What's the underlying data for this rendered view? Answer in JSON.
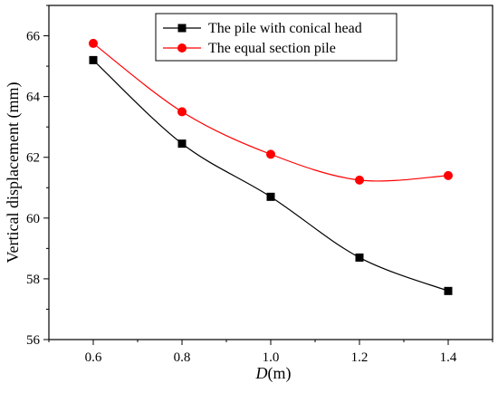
{
  "chart_data": {
    "type": "line",
    "title": "",
    "xlabel_italic": "D",
    "xlabel_rest": "(m)",
    "ylabel": "Vertical displacement (mm)",
    "xlim": [
      0.5,
      1.5
    ],
    "ylim": [
      56,
      67
    ],
    "xticks": [
      0.6,
      0.8,
      1.0,
      1.2,
      1.4
    ],
    "xtick_labels": [
      "0.6",
      "0.8",
      "1.0",
      "1.2",
      "1.4"
    ],
    "yticks": [
      56,
      58,
      60,
      62,
      64,
      66
    ],
    "ytick_labels": [
      "56",
      "58",
      "60",
      "62",
      "64",
      "66"
    ],
    "grid": false,
    "legend_position": "top-right",
    "series": [
      {
        "name": "The pile with conical head",
        "marker": "square",
        "color": "#000000",
        "x": [
          0.6,
          0.8,
          1.0,
          1.2,
          1.4
        ],
        "y": [
          65.2,
          62.45,
          60.7,
          58.7,
          57.6
        ]
      },
      {
        "name": "The equal section pile",
        "marker": "circle",
        "color": "#ff0000",
        "x": [
          0.6,
          0.8,
          1.0,
          1.2,
          1.4
        ],
        "y": [
          65.75,
          63.5,
          62.1,
          61.25,
          61.4
        ]
      }
    ]
  }
}
